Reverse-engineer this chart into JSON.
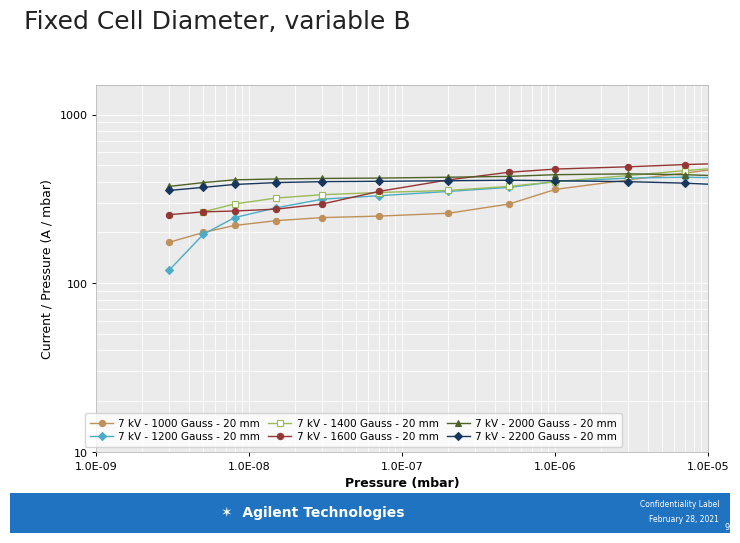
{
  "title": "Fixed Cell Diameter, variable B",
  "xlabel": "Pressure (mbar)",
  "ylabel": "Current / Pressure (A / mbar)",
  "xlim": [
    1e-09,
    1e-05
  ],
  "ylim": [
    10,
    1500
  ],
  "background_color": "#ffffff",
  "plot_bg_color": "#ebebeb",
  "grid_color": "#ffffff",
  "series": [
    {
      "label": "7 kV - 1000 Gauss - 20 mm",
      "color": "#c0905a",
      "marker": "o",
      "marker_face": "#c0905a",
      "marker_edge": "#c0905a",
      "x": [
        3e-09,
        5e-09,
        8e-09,
        1.5e-08,
        3e-08,
        7e-08,
        2e-07,
        5e-07,
        1e-06,
        3e-06,
        7e-06,
        1.5e-05
      ],
      "y": [
        175,
        200,
        220,
        235,
        245,
        250,
        260,
        295,
        360,
        410,
        450,
        490
      ]
    },
    {
      "label": "7 kV - 1200 Gauss - 20 mm",
      "color": "#4bacc6",
      "marker": "D",
      "marker_face": "#4bacc6",
      "marker_edge": "#4bacc6",
      "x": [
        3e-09,
        5e-09,
        8e-09,
        1.5e-08,
        3e-08,
        7e-08,
        2e-07,
        5e-07,
        1e-06,
        3e-06,
        7e-06,
        1.5e-05
      ],
      "y": [
        120,
        195,
        245,
        280,
        315,
        330,
        350,
        370,
        400,
        420,
        425,
        420
      ]
    },
    {
      "label": "7 kV - 1400 Gauss - 20 mm",
      "color": "#9bbb59",
      "marker": "s",
      "marker_face": "#ffffff",
      "marker_edge": "#9bbb59",
      "x": [
        5e-09,
        8e-09,
        1.5e-08,
        3e-08,
        7e-08,
        2e-07,
        5e-07,
        1e-06,
        3e-06,
        7e-06,
        1.5e-05
      ],
      "y": [
        265,
        295,
        320,
        335,
        345,
        355,
        375,
        400,
        435,
        465,
        490
      ]
    },
    {
      "label": "7 kV - 1600 Gauss - 20 mm",
      "color": "#943634",
      "marker": "o",
      "marker_face": "#943634",
      "marker_edge": "#943634",
      "x": [
        3e-09,
        5e-09,
        8e-09,
        1.5e-08,
        3e-08,
        7e-08,
        2e-07,
        5e-07,
        1e-06,
        3e-06,
        7e-06,
        1.5e-05
      ],
      "y": [
        255,
        265,
        268,
        275,
        295,
        350,
        410,
        455,
        475,
        490,
        505,
        515
      ]
    },
    {
      "label": "7 kV - 2000 Gauss - 20 mm",
      "color": "#4f6228",
      "marker": "^",
      "marker_face": "#4f6228",
      "marker_edge": "#4f6228",
      "x": [
        3e-09,
        5e-09,
        8e-09,
        1.5e-08,
        3e-08,
        7e-08,
        2e-07,
        5e-07,
        1e-06,
        3e-06,
        7e-06,
        1.5e-05
      ],
      "y": [
        375,
        395,
        410,
        415,
        418,
        420,
        425,
        430,
        440,
        445,
        440,
        430
      ]
    },
    {
      "label": "7 kV - 2200 Gauss - 20 mm",
      "color": "#17375e",
      "marker": "D",
      "marker_face": "#17375e",
      "marker_edge": "#17375e",
      "x": [
        3e-09,
        5e-09,
        8e-09,
        1.5e-08,
        3e-08,
        7e-08,
        2e-07,
        5e-07,
        1e-06,
        3e-06,
        7e-06,
        1.5e-05
      ],
      "y": [
        355,
        370,
        385,
        395,
        400,
        402,
        405,
        408,
        405,
        400,
        392,
        380
      ]
    }
  ],
  "title_fontsize": 18,
  "label_fontsize": 9,
  "tick_fontsize": 8,
  "legend_fontsize": 7.5,
  "footer_color": "#1f73c1",
  "footer_text_conf": "Confidentiality Label",
  "footer_text_date": "February 28, 2021",
  "footer_number": "9",
  "xtick_labels": [
    "1.0E-09",
    "1.0E-08",
    "1.0E-07",
    "1.0E-06",
    "1.0E-05"
  ],
  "xtick_vals": [
    1e-09,
    1e-08,
    1e-07,
    1e-06,
    1e-05
  ],
  "ytick_labels": [
    "10",
    "100",
    "1000"
  ],
  "ytick_vals": [
    10,
    100,
    1000
  ]
}
